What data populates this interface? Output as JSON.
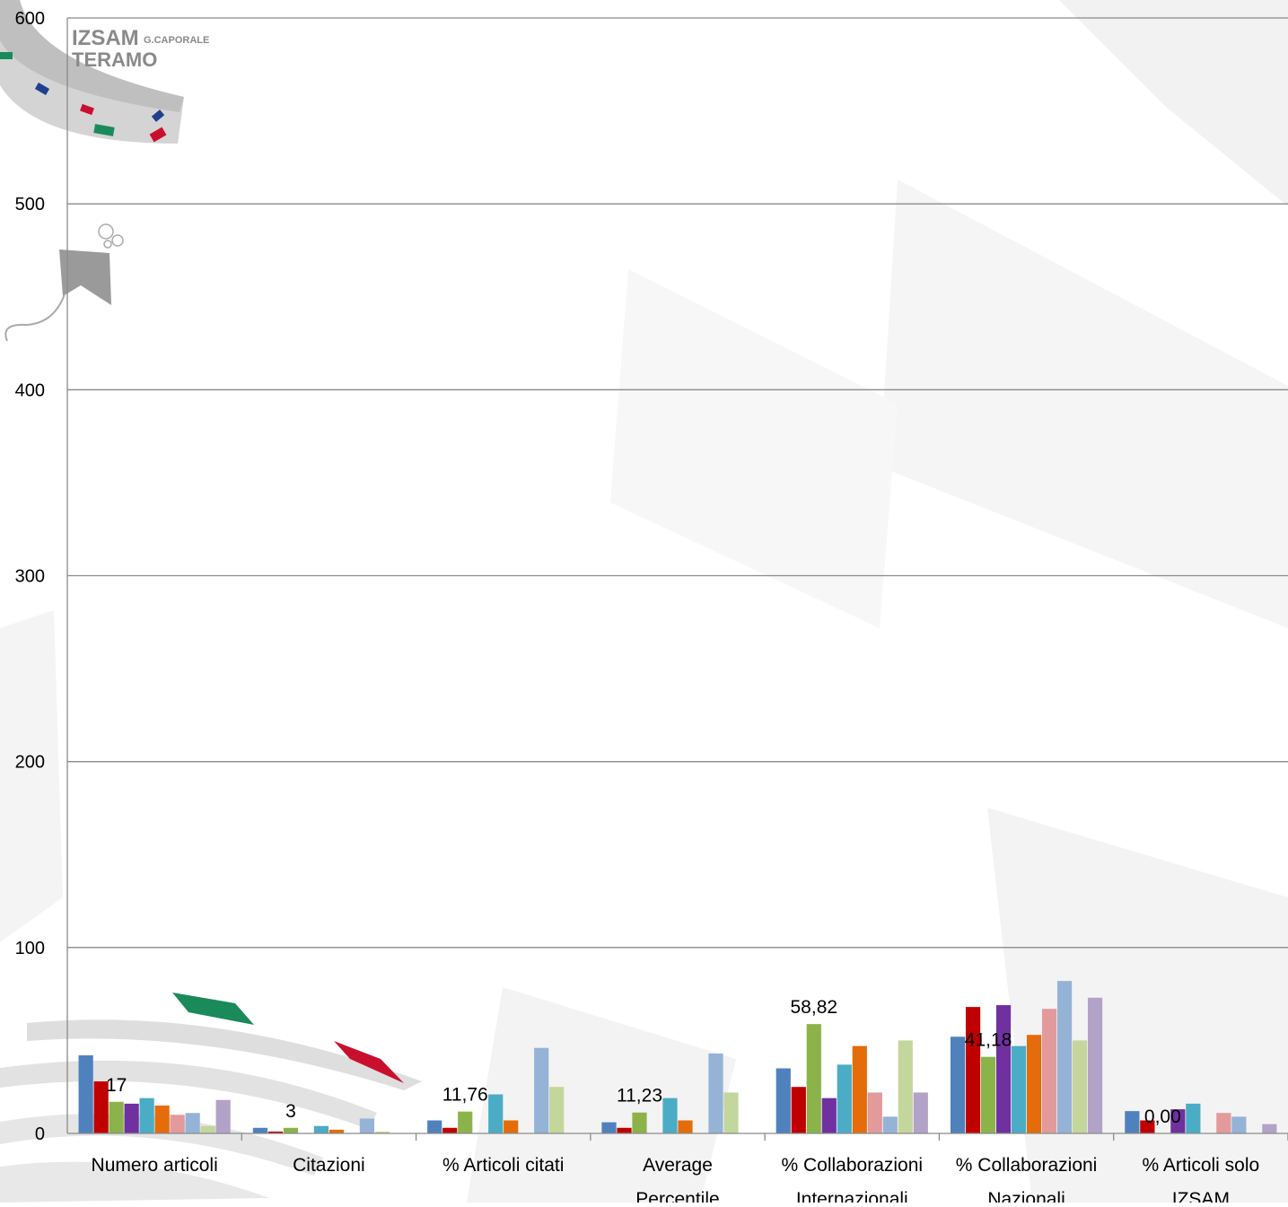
{
  "branding": {
    "logo_main": "IZSAM",
    "logo_sub": "G.CAPORALE",
    "logo_city": "TERAMO"
  },
  "colors": {
    "series": [
      "#4F81BD",
      "#C00000",
      "#8BB34A",
      "#7030A0",
      "#4BACC6",
      "#E46C0A",
      "#E39A9A",
      "#95B3D7",
      "#C3D69B",
      "#B3A2C7"
    ],
    "gridline": "#8a8a8a",
    "axis": "#8a8a8a",
    "decoration_grey": "#c9c9c9",
    "decoration_green": "#1a8a5a",
    "decoration_red": "#c8102e",
    "decoration_blue": "#1f3f8f"
  },
  "chart_data": {
    "type": "bar",
    "ylim": [
      0,
      600
    ],
    "yticks": [
      0,
      100,
      200,
      300,
      400,
      500,
      600
    ],
    "grid": true,
    "categories": [
      [
        "Numero articoli"
      ],
      [
        "Citazioni"
      ],
      [
        "% Articoli citati"
      ],
      [
        "Average",
        "Percentile"
      ],
      [
        "% Collaborazioni",
        "Internazionali"
      ],
      [
        "% Collaborazioni",
        "Nazionali"
      ],
      [
        "% Articoli solo",
        "IZSAM"
      ]
    ],
    "series": [
      {
        "values": [
          42,
          3,
          7,
          6,
          35,
          52,
          12
        ]
      },
      {
        "values": [
          28,
          1,
          3,
          3,
          25,
          68,
          7
        ]
      },
      {
        "values": [
          17,
          3,
          11.76,
          11.23,
          58.82,
          41.18,
          0
        ]
      },
      {
        "values": [
          16,
          0,
          0,
          0,
          19,
          69,
          13
        ]
      },
      {
        "values": [
          19,
          4,
          21,
          19,
          37,
          47,
          16
        ]
      },
      {
        "values": [
          15,
          2,
          7,
          7,
          47,
          53,
          0
        ]
      },
      {
        "values": [
          10,
          0,
          0,
          0,
          22,
          67,
          11
        ]
      },
      {
        "values": [
          11,
          8,
          46,
          43,
          9,
          82,
          9
        ]
      },
      {
        "values": [
          4,
          1,
          25,
          22,
          50,
          50,
          0
        ]
      },
      {
        "values": [
          18,
          0,
          0,
          0,
          22,
          73,
          5
        ]
      }
    ],
    "data_labels": [
      "17",
      "3",
      "11,76",
      "11,23",
      "58,82",
      "41,18",
      "0,00"
    ],
    "data_label_series": 2
  }
}
